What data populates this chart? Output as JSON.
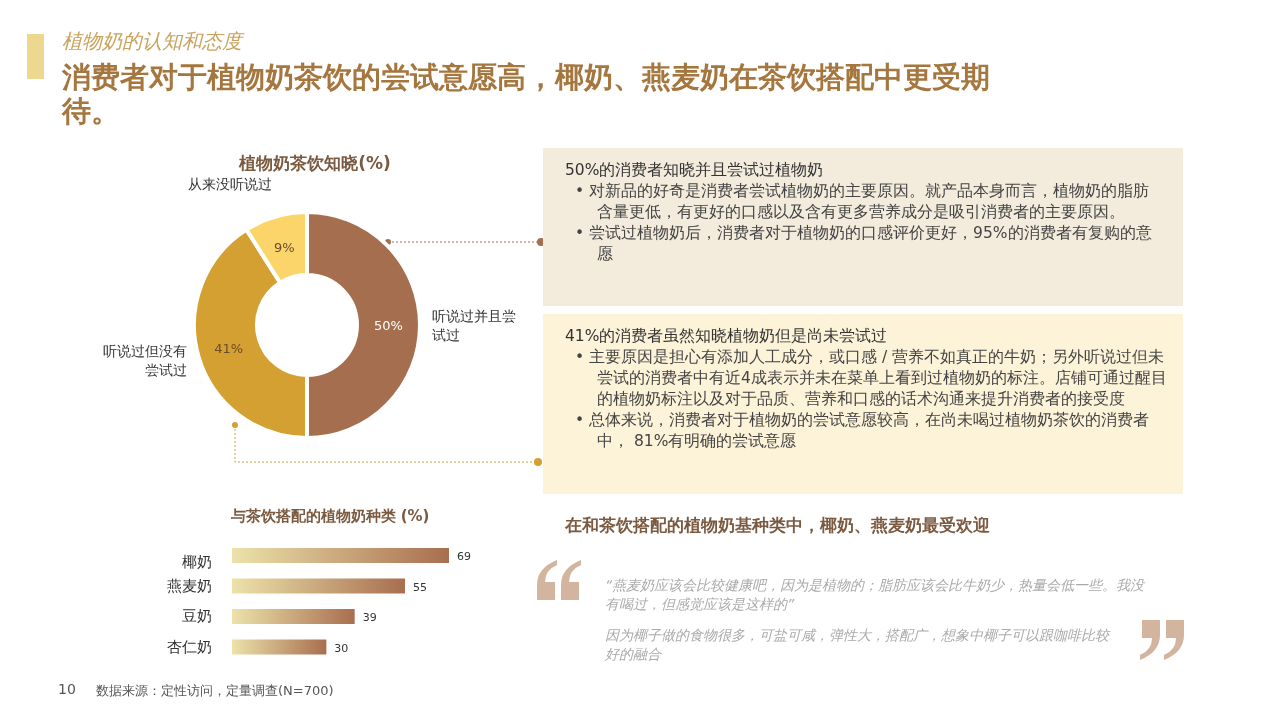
{
  "chart_data": [
    {
      "type": "donut",
      "title": "植物奶茶饮知晓(%)",
      "categories": [
        "听说过并且尝试过",
        "听说过但没有尝试过",
        "从来没听说过"
      ],
      "values": [
        50,
        41,
        9
      ],
      "colors": [
        "#a56f4f",
        "#d4a032",
        "#fbd56a"
      ],
      "value_labels": [
        "50%",
        "41%",
        "9%"
      ]
    },
    {
      "type": "bar",
      "orientation": "horizontal",
      "title": "与茶饮搭配的植物奶种类 (%)",
      "categories": [
        "椰奶",
        "燕麦奶",
        "豆奶",
        "杏仁奶"
      ],
      "values": [
        69,
        55,
        39,
        30
      ],
      "color": "#a86e4f",
      "data_labels": true
    },
    {
      "type": "other",
      "subtitle": "植物奶的认知和态度",
      "title": "消费者对于植物奶茶饮的尝试意愿高，椰奶、燕麦奶在茶饮搭配中更受期待。",
      "annotations": [
        "50%的消费者知晓并且尝试过植物奶",
        "• 对新品的好奇是消费者尝试植物奶的主要原因。就产品本身而言，植物奶的脂肪含量更低，有更好的口感以及含有更多营养成分是吸引消费者的主要原因。",
        "• 尝试过植物奶后，消费者对于植物奶的口感评价更好，95%的消费者有复购的意愿",
        "41%的消费者虽然知晓植物奶但是尚未尝试过",
        "• 主要原因是担心有添加人工成分，或口感 / 营养不如真正的牛奶；另外听说过但未尝试的消费者中有近4成表示并未在菜单上看到过植物奶的标注。店铺可通过醒目的植物奶标注以及对于品质、营养和口感的话术沟通来提升消费者的接受度",
        "• 总体来说，消费者对于植物奶的尝试意愿较高，在尚未喝过植物奶茶饮的消费者中， 81%有明确的尝试意愿",
        "在和茶饮搭配的植物奶基种类中，椰奶、燕麦奶最受欢迎",
        "“燕麦奶应该会比较健康吧，因为是植物的；脂肪应该会比牛奶少，热量会低一些。我没有喝过，但感觉应该是这样的”",
        "因为椰子做的食物很多，可盐可咸，弹性大，搭配广，想象中椰子可以跟咖啡比较好的融合",
        "10",
        "数据来源：定性访问，定量调查(N=700)"
      ]
    }
  ]
}
